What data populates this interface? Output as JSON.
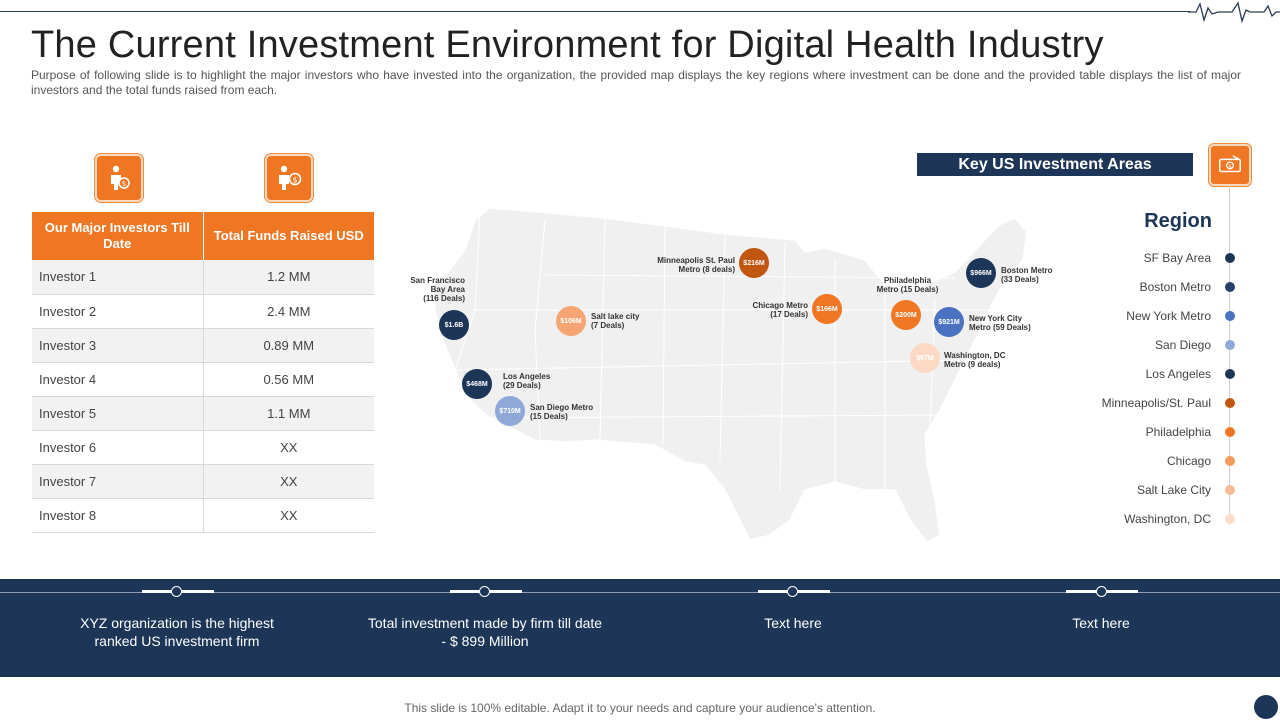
{
  "title": "The Current Investment Environment for Digital Health Industry",
  "subtitle": "Purpose of following slide is to highlight the major investors who have invested into the organization, the provided map displays the key regions where investment can be done and the provided table displays the list of major investors and the total funds raised from each.",
  "table": {
    "headers": [
      "Our Major Investors Till Date",
      "Total Funds Raised USD"
    ],
    "rows": [
      {
        "name": "Investor 1",
        "value": "1.2 MM"
      },
      {
        "name": "Investor 2",
        "value": "2.4 MM"
      },
      {
        "name": "Investor 3",
        "value": "0.89 MM"
      },
      {
        "name": "Investor 4",
        "value": "0.56 MM"
      },
      {
        "name": "Investor 5",
        "value": "1.1 MM"
      },
      {
        "name": "Investor 6",
        "value": "XX"
      },
      {
        "name": "Investor 7",
        "value": "XX"
      },
      {
        "name": "Investor 8",
        "value": "XX"
      }
    ]
  },
  "map": {
    "markers": [
      {
        "amount": "$1.6B",
        "label": [
          "San Francisco",
          "Bay Area",
          "(116 Deals)"
        ],
        "color": "#1d3557"
      },
      {
        "amount": "$468M",
        "label": [
          "Los Angeles",
          "(29 Deals)"
        ],
        "color": "#1d3557"
      },
      {
        "amount": "$710M",
        "label": [
          "San Diego Metro",
          "(15 Deals)"
        ],
        "color": "#8fa8d8"
      },
      {
        "amount": "$106M",
        "label": [
          "Salt lake city",
          "(7 Deals)"
        ],
        "color": "#f5a573"
      },
      {
        "amount": "$216M",
        "label": [
          "Minneapolis St. Paul",
          "Metro (8 deals)"
        ],
        "color": "#c0560f"
      },
      {
        "amount": "$166M",
        "label": [
          "Chicago Metro",
          "(17 Deals)"
        ],
        "color": "#ef7622"
      },
      {
        "amount": "$200M",
        "label": [
          "Philadelphia",
          "Metro (15 Deals)"
        ],
        "color": "#ef7622"
      },
      {
        "amount": "$966M",
        "label": [
          "Boston Metro",
          "(33 Deals)"
        ],
        "color": "#1d3557"
      },
      {
        "amount": "$921M",
        "label": [
          "New York City",
          "Metro (59 Deals)"
        ],
        "color": "#4a72c0"
      },
      {
        "amount": "$67M",
        "label": [
          "Washington, DC",
          "Metro (9 deals)"
        ],
        "color": "#fbd9c4"
      }
    ]
  },
  "key_areas": {
    "title": "Key US Investment Areas",
    "region_title": "Region",
    "regions": [
      {
        "name": "SF Bay Area",
        "color": "#1d3557"
      },
      {
        "name": "Boston Metro",
        "color": "#24406b"
      },
      {
        "name": "New York Metro",
        "color": "#4a72c0"
      },
      {
        "name": "San Diego",
        "color": "#8fa8d8"
      },
      {
        "name": "Los Angeles",
        "color": "#1d3557"
      },
      {
        "name": "Minneapolis/St. Paul",
        "color": "#c0560f"
      },
      {
        "name": "Philadelphia",
        "color": "#ef7622"
      },
      {
        "name": "Chicago",
        "color": "#f39a5c"
      },
      {
        "name": "Salt Lake City",
        "color": "#f6bb95"
      },
      {
        "name": "Washington, DC",
        "color": "#fbdcc8"
      }
    ]
  },
  "banner": {
    "items": [
      "XYZ organization is the highest ranked US investment firm",
      "Total investment made by firm till date - $ 899 Million",
      "Text here",
      "Text here"
    ]
  },
  "footer": "This slide is 100% editable. Adapt it to your needs and capture your audience's attention.",
  "icons": {
    "investor": "investor-person-icon",
    "funds": "funds-person-icon",
    "key_areas": "money-cash-icon",
    "header_decoration": "heartbeat-pulse-icon"
  }
}
